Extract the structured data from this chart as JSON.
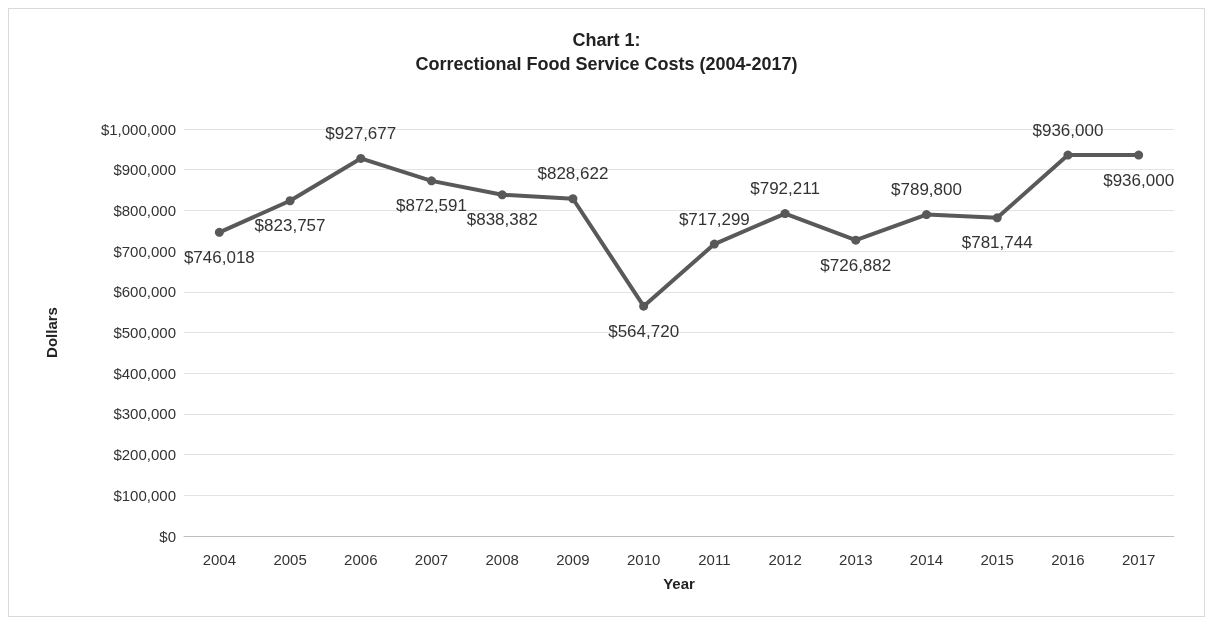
{
  "chart_data": {
    "type": "line",
    "title": "Chart 1:\nCorrectional Food Service Costs (2004-2017)",
    "xlabel": "Year",
    "ylabel": "Dollars",
    "categories": [
      "2004",
      "2005",
      "2006",
      "2007",
      "2008",
      "2009",
      "2010",
      "2011",
      "2012",
      "2013",
      "2014",
      "2015",
      "2016",
      "2017"
    ],
    "series": [
      {
        "color": "#595959",
        "values": [
          746018,
          823757,
          927677,
          872591,
          838382,
          828622,
          564720,
          717299,
          792211,
          726882,
          789800,
          781744,
          936000,
          936000
        ],
        "value_labels": [
          "$746,018",
          "$823,757",
          "$927,677",
          "$872,591",
          "$838,382",
          "$828,622",
          "$564,720",
          "$717,299",
          "$792,211",
          "$726,882",
          "$789,800",
          "$781,744",
          "$936,000",
          "$936,000"
        ]
      }
    ],
    "ylim": [
      0,
      1000000
    ],
    "yticks": [
      {
        "value": 0,
        "label": "$0"
      },
      {
        "value": 100000,
        "label": "$100,000"
      },
      {
        "value": 200000,
        "label": "$200,000"
      },
      {
        "value": 300000,
        "label": "$300,000"
      },
      {
        "value": 400000,
        "label": "$400,000"
      },
      {
        "value": 500000,
        "label": "$500,000"
      },
      {
        "value": 600000,
        "label": "$600,000"
      },
      {
        "value": 700000,
        "label": "$700,000"
      },
      {
        "value": 800000,
        "label": "$800,000"
      },
      {
        "value": 900000,
        "label": "$900,000"
      },
      {
        "value": 1000000,
        "label": "$1,000,000"
      }
    ],
    "grid": "y",
    "marker": "circle",
    "line_style": "solid"
  }
}
